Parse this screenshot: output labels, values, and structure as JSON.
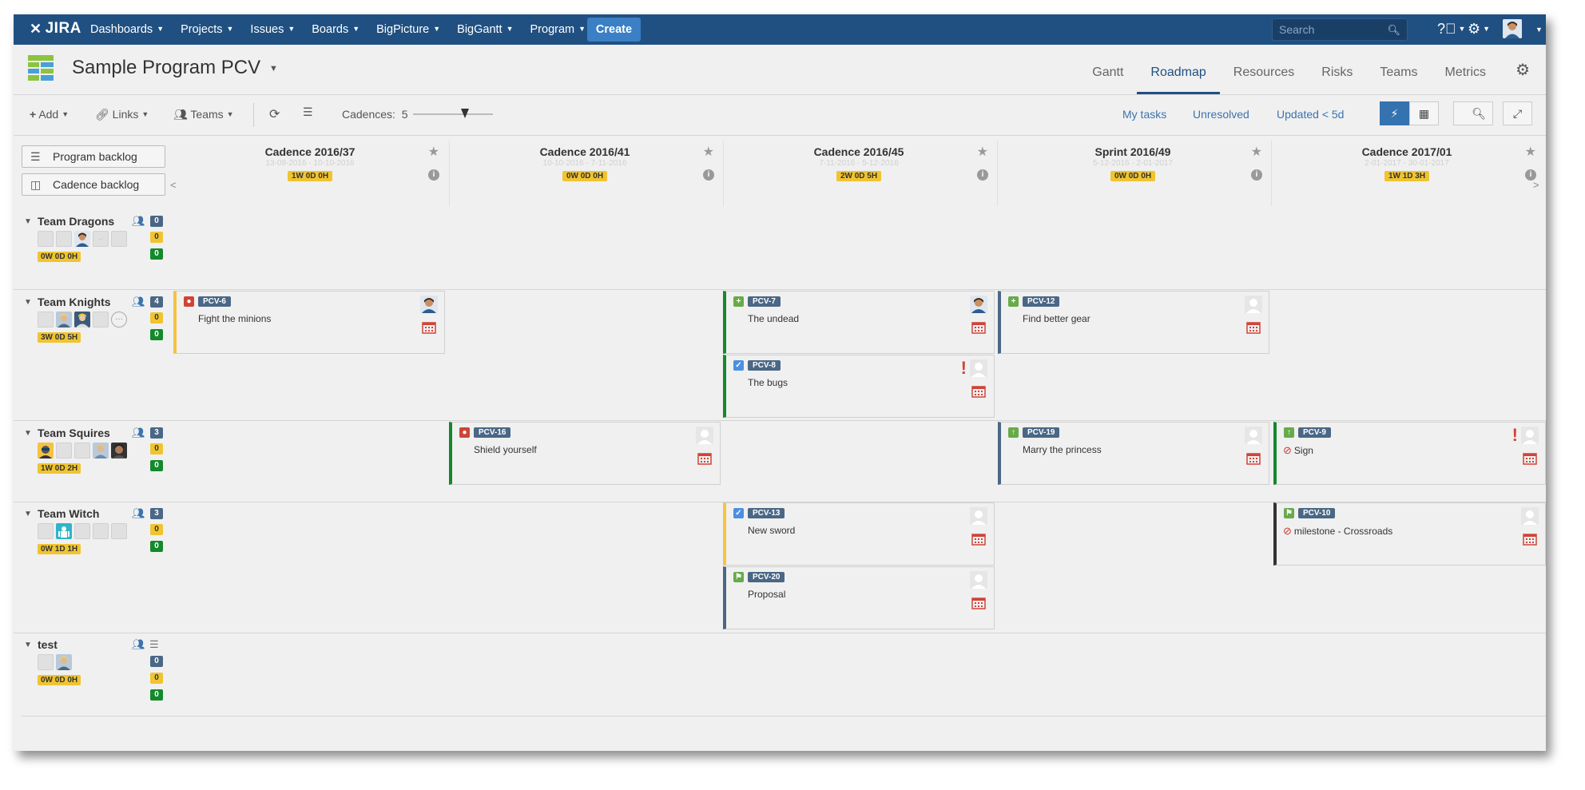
{
  "nav": {
    "logo": "JIRA",
    "menu": [
      {
        "label": "Dashboards"
      },
      {
        "label": "Projects"
      },
      {
        "label": "Issues"
      },
      {
        "label": "Boards"
      },
      {
        "label": "BigPicture"
      },
      {
        "label": "BigGantt"
      },
      {
        "label": "Program"
      }
    ],
    "create": "Create",
    "search_placeholder": "Search"
  },
  "header": {
    "title": "Sample Program PCV",
    "tabs": [
      "Gantt",
      "Roadmap",
      "Resources",
      "Risks",
      "Teams",
      "Metrics"
    ],
    "active_tab": "Roadmap"
  },
  "toolbar": {
    "add": "Add",
    "links": "Links",
    "teams": "Teams",
    "cadences_label": "Cadences:",
    "cadences_value": "5",
    "filters": [
      "My tasks",
      "Unresolved",
      "Updated < 5d"
    ]
  },
  "left": {
    "program_backlog": "Program backlog",
    "cadence_backlog": "Cadence backlog"
  },
  "cadences": [
    {
      "name": "Cadence 2016/37",
      "dates": "13-09-2016 - 10-10-2016",
      "badge": "1W 0D 0H"
    },
    {
      "name": "Cadence 2016/41",
      "dates": "10-10-2016 - 7-11-2016",
      "badge": "0W 0D 0H"
    },
    {
      "name": "Cadence 2016/45",
      "dates": "7-11-2016 - 5-12-2016",
      "badge": "2W 0D 5H"
    },
    {
      "name": "Sprint 2016/49",
      "dates": "5-12-2016 - 2-01-2017",
      "badge": "0W 0D 0H"
    },
    {
      "name": "Cadence 2017/01",
      "dates": "2-01-2017 - 30-01-2017",
      "badge": "1W 1D 3H"
    }
  ],
  "teams": [
    {
      "name": "Team Dragons",
      "counts": [
        "0",
        "0",
        "0"
      ],
      "badge": "0W 0D 0H"
    },
    {
      "name": "Team Knights",
      "counts": [
        "4",
        "0",
        "0"
      ],
      "badge": "3W 0D 5H"
    },
    {
      "name": "Team Squires",
      "counts": [
        "3",
        "0",
        "0"
      ],
      "badge": "1W 0D 2H"
    },
    {
      "name": "Team Witch",
      "counts": [
        "3",
        "0",
        "0"
      ],
      "badge": "0W 1D 1H"
    },
    {
      "name": "test",
      "counts": [
        "0",
        "0",
        "0"
      ],
      "badge": "0W 0D 0H"
    }
  ],
  "cards": [
    {
      "key": "PCV-6",
      "summary": "Fight the minions",
      "type": "bug",
      "status_color": "#f6c342"
    },
    {
      "key": "PCV-7",
      "summary": "The undead",
      "type": "new-feature",
      "status_color": "#14892c"
    },
    {
      "key": "PCV-8",
      "summary": "The bugs",
      "type": "task",
      "status_color": "#14892c"
    },
    {
      "key": "PCV-12",
      "summary": "Find better gear",
      "type": "new-feature",
      "status_color": "#4a6785"
    },
    {
      "key": "PCV-16",
      "summary": "Shield yourself",
      "type": "bug",
      "status_color": "#14892c"
    },
    {
      "key": "PCV-19",
      "summary": "Marry the princess",
      "type": "improvement",
      "status_color": "#4a6785"
    },
    {
      "key": "PCV-9",
      "summary": "Sign",
      "type": "improvement",
      "status_color": "#14892c"
    },
    {
      "key": "PCV-13",
      "summary": "New sword",
      "type": "task",
      "status_color": "#f6c342"
    },
    {
      "key": "PCV-10",
      "summary": "milestone - Crossroads",
      "type": "milestone",
      "status_color": "#333333"
    },
    {
      "key": "PCV-20",
      "summary": "Proposal",
      "type": "milestone",
      "status_color": "#4a6785"
    }
  ],
  "colors": {
    "topbar": "#205081",
    "create": "#3b7fc4",
    "key_badge": "#4a6785",
    "time_badge": "#f0c430",
    "green": "#14892c",
    "bug": "#d04437",
    "feature": "#67ab49",
    "task": "#4a90e2"
  }
}
